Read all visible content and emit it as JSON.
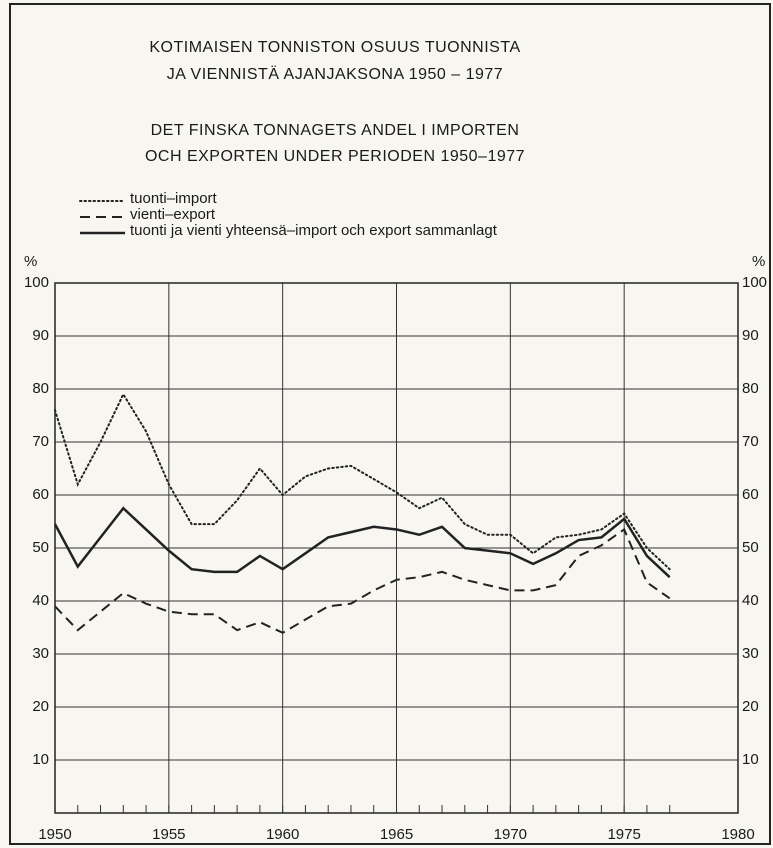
{
  "chart_data": {
    "type": "line",
    "title": [
      "KOTIMAISEN TONNISTON OSUUS TUONNISTA",
      "JA VIENNISTÄ AJANJAKSONA 1950 – 1977"
    ],
    "subtitle": [
      "DET FINSKA TONNAGETS ANDEL I IMPORTEN",
      "OCH EXPORTEN UNDER PERIODEN 1950–1977"
    ],
    "ylabel": "%",
    "y2label": "%",
    "x": [
      1950,
      1951,
      1952,
      1953,
      1954,
      1955,
      1956,
      1957,
      1958,
      1959,
      1960,
      1961,
      1962,
      1963,
      1964,
      1965,
      1966,
      1967,
      1968,
      1969,
      1970,
      1971,
      1972,
      1973,
      1974,
      1975,
      1976,
      1977
    ],
    "series": [
      {
        "name": "tuonti–import",
        "color": "#222",
        "style": "dotted",
        "values": [
          76,
          62,
          70,
          79,
          72,
          62,
          54.5,
          54.5,
          59,
          65,
          60,
          63.5,
          65,
          65.5,
          63,
          60.5,
          57.5,
          59.5,
          54.5,
          52.5,
          52.5,
          49,
          52,
          52.5,
          53.5,
          56.5,
          50,
          46
        ]
      },
      {
        "name": "vienti–export",
        "color": "#222",
        "style": "dashed",
        "values": [
          39,
          34.5,
          38,
          41.5,
          39.5,
          38,
          37.5,
          37.5,
          34.5,
          36,
          34,
          36.5,
          39,
          39.5,
          42,
          44,
          44.5,
          45.5,
          44,
          43,
          42,
          42,
          43,
          48.5,
          50.5,
          53.5,
          43.5,
          40.5
        ]
      },
      {
        "name": "tuonti ja vienti yhteensä–import och export sammanlagt",
        "color": "#222",
        "style": "solid",
        "values": [
          54.5,
          46.5,
          52,
          57.5,
          53.5,
          49.5,
          46,
          45.5,
          45.5,
          48.5,
          46,
          49,
          52,
          53,
          54,
          53.5,
          52.5,
          54,
          50,
          49.5,
          49,
          47,
          49,
          51.5,
          52,
          55.5,
          48.5,
          44.5
        ]
      }
    ],
    "xlim": [
      1950,
      1980
    ],
    "xticks": [
      1950,
      1955,
      1960,
      1965,
      1970,
      1975,
      1980
    ],
    "ylim": [
      0,
      100
    ],
    "yticks": [
      10,
      20,
      30,
      40,
      50,
      60,
      70,
      80,
      90,
      100
    ],
    "y2lim": [
      0,
      100
    ],
    "y2ticks": [
      10,
      20,
      30,
      40,
      50,
      60,
      70,
      80,
      90,
      100
    ],
    "grid": true
  }
}
